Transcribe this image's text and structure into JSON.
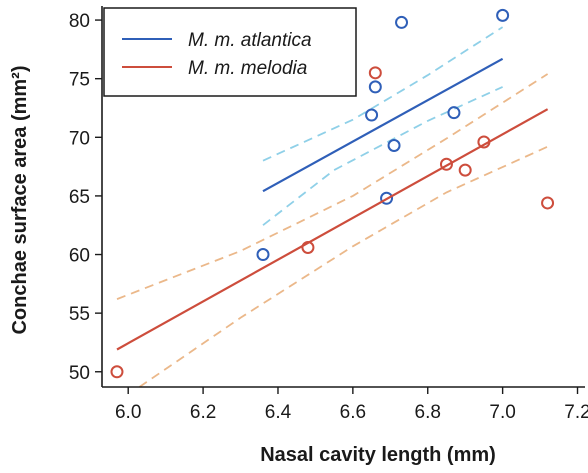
{
  "chart_data": {
    "type": "scatter",
    "xlabel": "Nasal cavity length (mm)",
    "ylabel": "Conchae surface area (mm²)",
    "xlim": [
      5.93,
      7.22
    ],
    "ylim": [
      48.7,
      81.2
    ],
    "x_ticks": [
      "6.0",
      "6.2",
      "6.4",
      "6.6",
      "6.8",
      "7.0",
      "7.2"
    ],
    "y_ticks": [
      "50",
      "55",
      "60",
      "65",
      "70",
      "75",
      "80"
    ],
    "grid": false,
    "legend_position": "top-left",
    "series": [
      {
        "name": "M. m. atlantica",
        "color": "#2f5fb8",
        "ci_color": "#8fd0e8",
        "points": [
          {
            "x": 6.36,
            "y": 60.0
          },
          {
            "x": 6.65,
            "y": 71.9
          },
          {
            "x": 6.66,
            "y": 74.3
          },
          {
            "x": 6.69,
            "y": 64.8
          },
          {
            "x": 6.71,
            "y": 69.3
          },
          {
            "x": 6.73,
            "y": 79.8
          },
          {
            "x": 6.87,
            "y": 72.1
          },
          {
            "x": 7.0,
            "y": 80.4
          }
        ],
        "fit": [
          {
            "x": 6.36,
            "y": 65.4
          },
          {
            "x": 7.0,
            "y": 76.7
          }
        ],
        "ci_upper": [
          {
            "x": 6.36,
            "y": 68.0
          },
          {
            "x": 6.6,
            "y": 71.5
          },
          {
            "x": 6.8,
            "y": 75.3
          },
          {
            "x": 7.0,
            "y": 79.4
          }
        ],
        "ci_lower": [
          {
            "x": 6.36,
            "y": 62.5
          },
          {
            "x": 6.55,
            "y": 67.2
          },
          {
            "x": 6.8,
            "y": 71.4
          },
          {
            "x": 7.0,
            "y": 74.3
          }
        ]
      },
      {
        "name": "M. m. melodia",
        "color": "#cd4d3c",
        "ci_color": "#ebb88a",
        "points": [
          {
            "x": 5.97,
            "y": 50.0
          },
          {
            "x": 6.48,
            "y": 60.6
          },
          {
            "x": 6.66,
            "y": 75.5
          },
          {
            "x": 6.85,
            "y": 67.7
          },
          {
            "x": 6.9,
            "y": 67.2
          },
          {
            "x": 6.95,
            "y": 69.6
          },
          {
            "x": 7.12,
            "y": 64.4
          }
        ],
        "fit": [
          {
            "x": 5.97,
            "y": 51.9
          },
          {
            "x": 7.12,
            "y": 72.4
          }
        ],
        "ci_upper": [
          {
            "x": 5.97,
            "y": 56.2
          },
          {
            "x": 6.3,
            "y": 60.3
          },
          {
            "x": 6.6,
            "y": 65.0
          },
          {
            "x": 6.85,
            "y": 69.9
          },
          {
            "x": 7.12,
            "y": 75.4
          }
        ],
        "ci_lower": [
          {
            "x": 6.03,
            "y": 48.7
          },
          {
            "x": 6.3,
            "y": 54.6
          },
          {
            "x": 6.6,
            "y": 60.7
          },
          {
            "x": 6.85,
            "y": 65.3
          },
          {
            "x": 7.12,
            "y": 69.2
          }
        ]
      }
    ]
  }
}
